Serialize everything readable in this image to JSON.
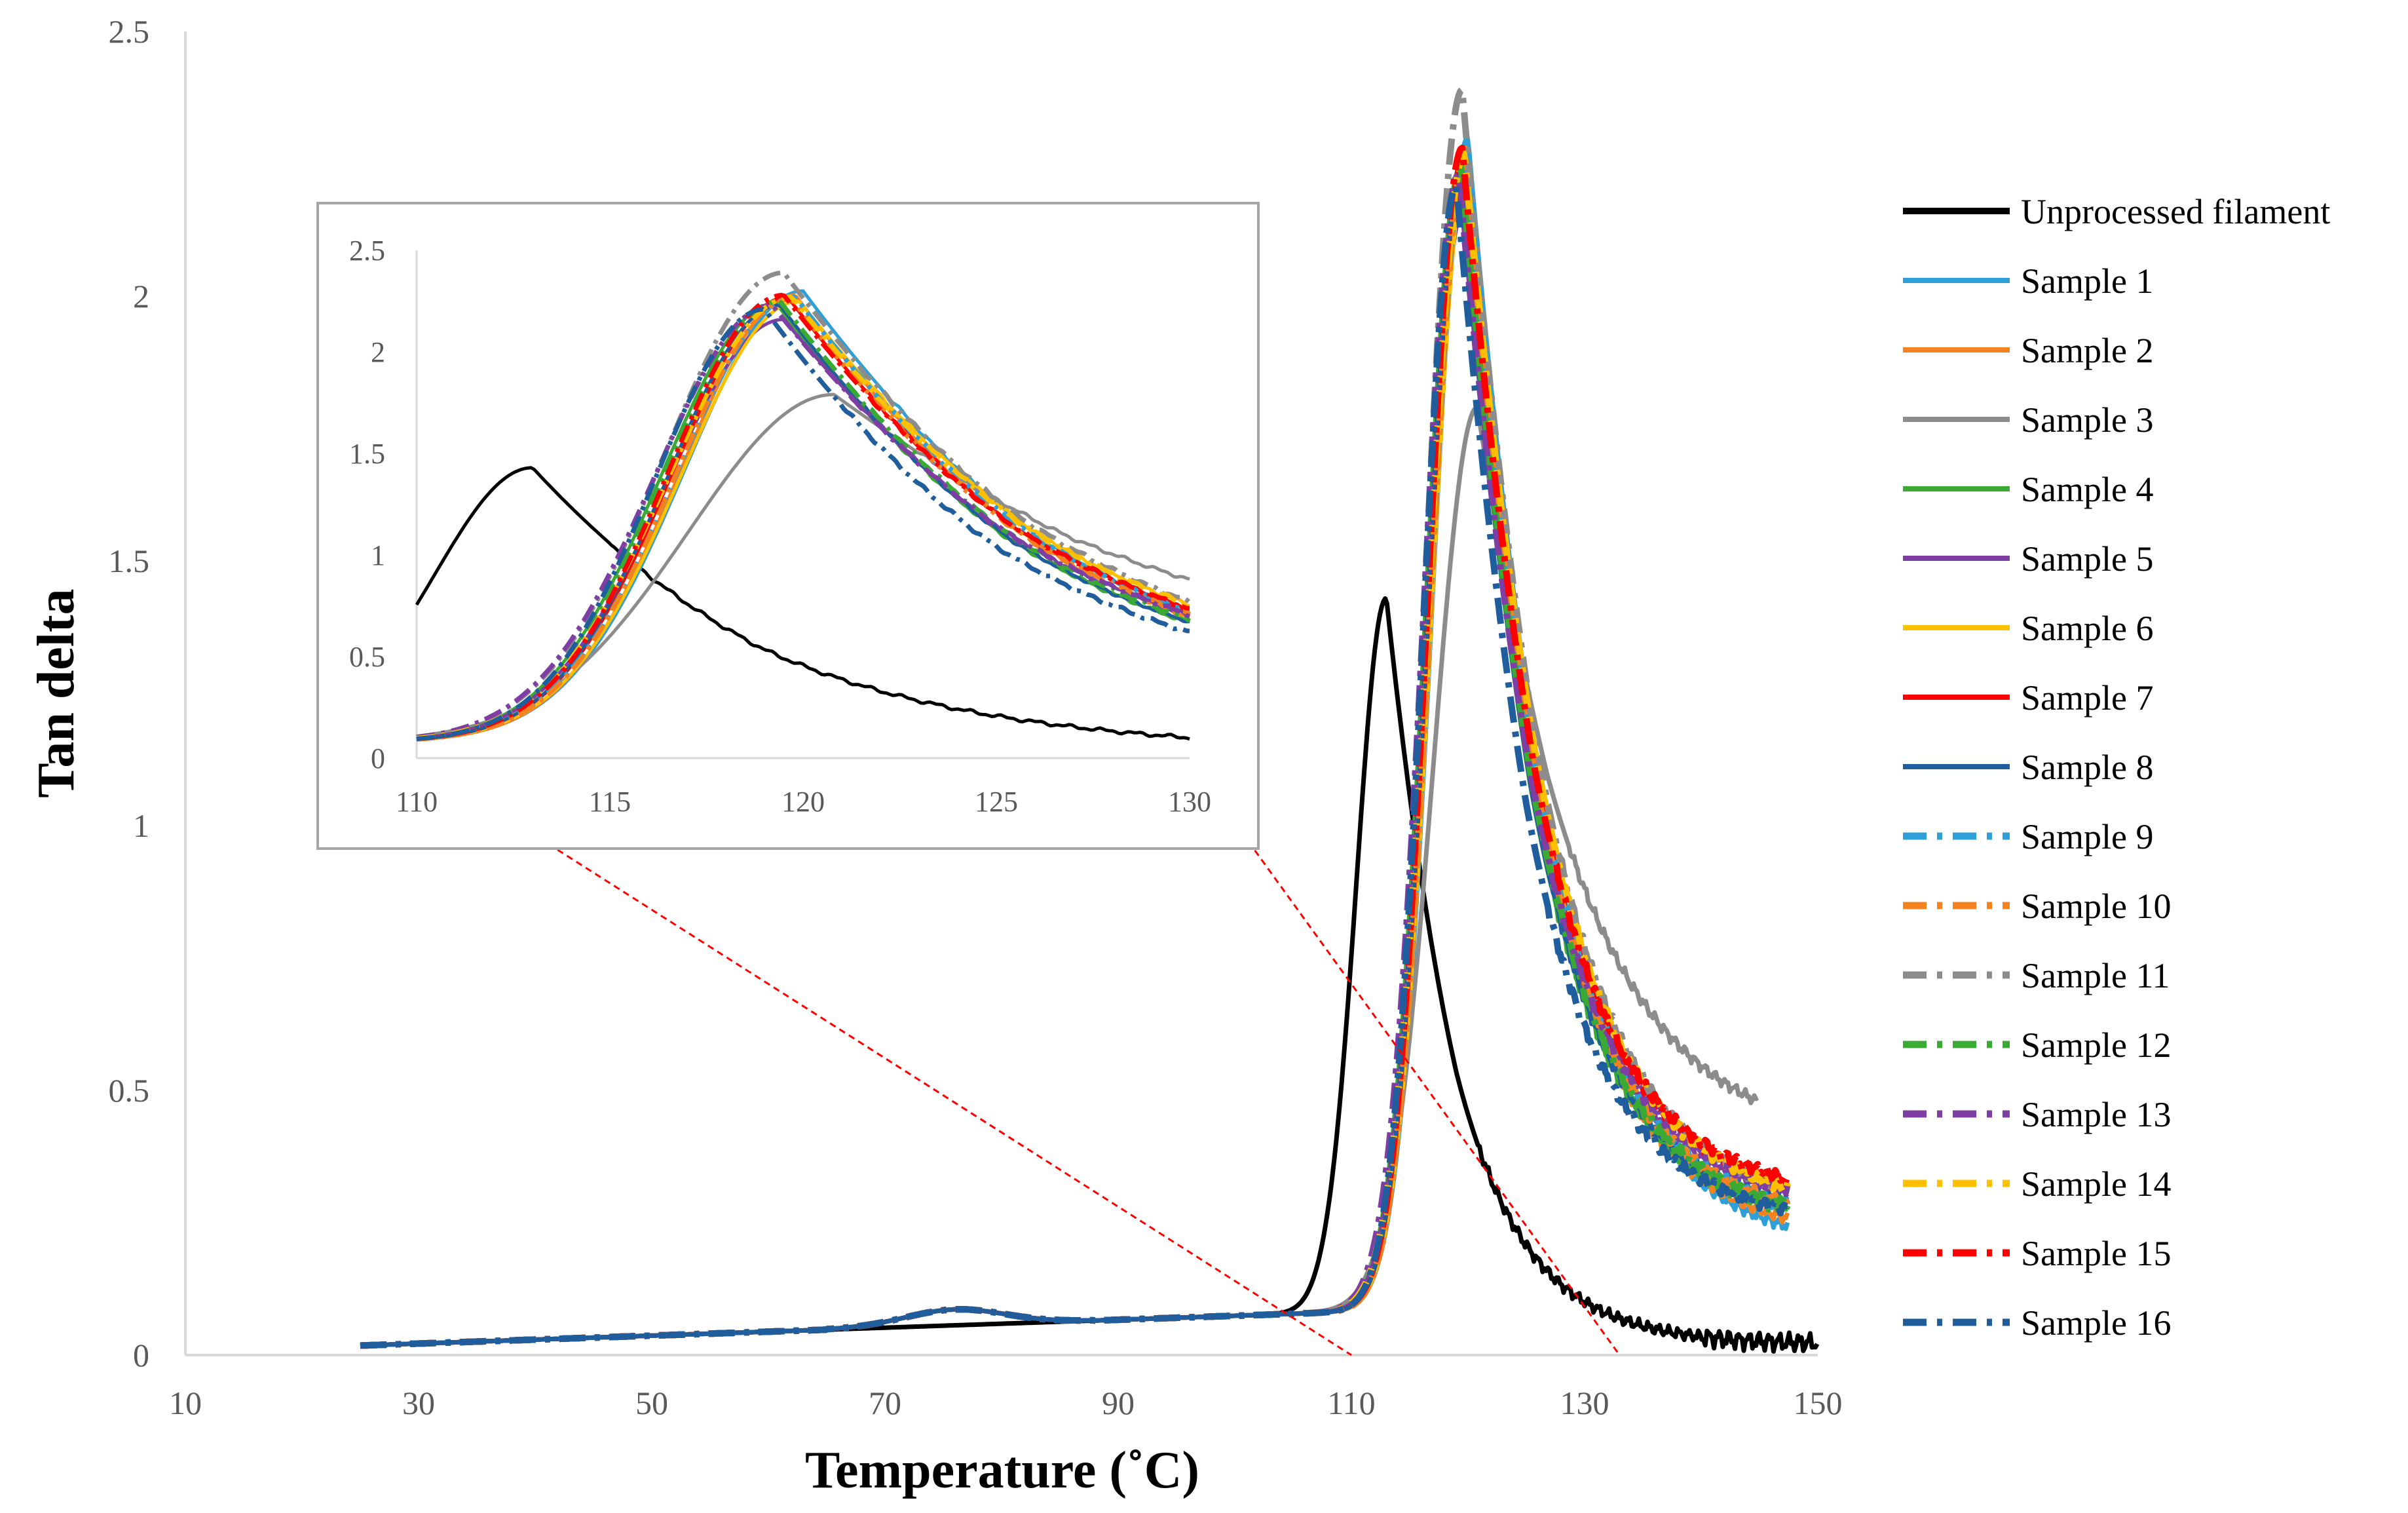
{
  "chart_data": {
    "type": "line",
    "xlabel": "Temperature (˚C)",
    "ylabel": "Tan delta",
    "xlim": [
      10,
      150
    ],
    "ylim": [
      0,
      2.5
    ],
    "xticks": [
      "10",
      "30",
      "50",
      "70",
      "90",
      "110",
      "130",
      "150"
    ],
    "yticks": [
      "0",
      "0.5",
      "1",
      "1.5",
      "2",
      "2.5"
    ],
    "grid": false,
    "legend_position": "right",
    "series": [
      {
        "name": "Unprocessed filament",
        "color": "#000000",
        "dash": "solid",
        "peak_x": 113,
        "peak_y": 1.43,
        "width": 3.6,
        "end_y": 0.02
      },
      {
        "name": "Sample 1",
        "color": "#2f9fd8",
        "dash": "solid",
        "peak_x": 120,
        "peak_y": 2.3,
        "width": 4.3,
        "end_y": 0.2
      },
      {
        "name": "Sample 2",
        "color": "#f58220",
        "dash": "solid",
        "peak_x": 119.8,
        "peak_y": 2.28,
        "width": 4.2,
        "end_y": 0.22
      },
      {
        "name": "Sample 3",
        "color": "#8c8c8c",
        "dash": "solid",
        "peak_x": 120.8,
        "peak_y": 1.79,
        "width": 5.3,
        "end_y": 0.39
      },
      {
        "name": "Sample 4",
        "color": "#3aaa35",
        "dash": "solid",
        "peak_x": 119.3,
        "peak_y": 2.24,
        "width": 4.2,
        "end_y": 0.24
      },
      {
        "name": "Sample 5",
        "color": "#7e3ea3",
        "dash": "solid",
        "peak_x": 119.5,
        "peak_y": 2.16,
        "width": 4.3,
        "end_y": 0.27
      },
      {
        "name": "Sample 6",
        "color": "#ffc000",
        "dash": "solid",
        "peak_x": 119.9,
        "peak_y": 2.25,
        "width": 4.3,
        "end_y": 0.28
      },
      {
        "name": "Sample 7",
        "color": "#ff0000",
        "dash": "solid",
        "peak_x": 119.6,
        "peak_y": 2.27,
        "width": 4.2,
        "end_y": 0.29
      },
      {
        "name": "Sample 8",
        "color": "#1f5d9c",
        "dash": "solid",
        "peak_x": 119.4,
        "peak_y": 2.23,
        "width": 4.1,
        "end_y": 0.26
      },
      {
        "name": "Sample 9",
        "color": "#2f9fd8",
        "dash": "dashdot",
        "peak_x": 119.8,
        "peak_y": 2.27,
        "width": 4.3,
        "end_y": 0.24
      },
      {
        "name": "Sample 10",
        "color": "#f58220",
        "dash": "dashdot",
        "peak_x": 119.7,
        "peak_y": 2.26,
        "width": 4.2,
        "end_y": 0.25
      },
      {
        "name": "Sample 11",
        "color": "#8c8c8c",
        "dash": "dashdot",
        "peak_x": 119.5,
        "peak_y": 2.39,
        "width": 4.4,
        "end_y": 0.27
      },
      {
        "name": "Sample 12",
        "color": "#3aaa35",
        "dash": "dashdot",
        "peak_x": 119.4,
        "peak_y": 2.25,
        "width": 4.2,
        "end_y": 0.25
      },
      {
        "name": "Sample 13",
        "color": "#7e3ea3",
        "dash": "dashdot",
        "peak_x": 119.2,
        "peak_y": 2.23,
        "width": 4.3,
        "end_y": 0.28
      },
      {
        "name": "Sample 14",
        "color": "#ffc000",
        "dash": "dashdot",
        "peak_x": 119.7,
        "peak_y": 2.27,
        "width": 4.4,
        "end_y": 0.27
      },
      {
        "name": "Sample 15",
        "color": "#ff0000",
        "dash": "dashdot",
        "peak_x": 119.5,
        "peak_y": 2.28,
        "width": 4.2,
        "end_y": 0.3
      },
      {
        "name": "Sample 16",
        "color": "#1f5d9c",
        "dash": "dashdot",
        "peak_x": 119.0,
        "peak_y": 2.21,
        "width": 4.0,
        "end_y": 0.25
      }
    ],
    "inset": {
      "xlim": [
        110,
        130
      ],
      "ylim": [
        0,
        2.5
      ],
      "xticks": [
        "110",
        "115",
        "120",
        "125",
        "130"
      ],
      "yticks": [
        "0",
        "0.5",
        "1",
        "1.5",
        "2",
        "2.5"
      ],
      "zoom_connector_color": "#ff0000"
    }
  }
}
